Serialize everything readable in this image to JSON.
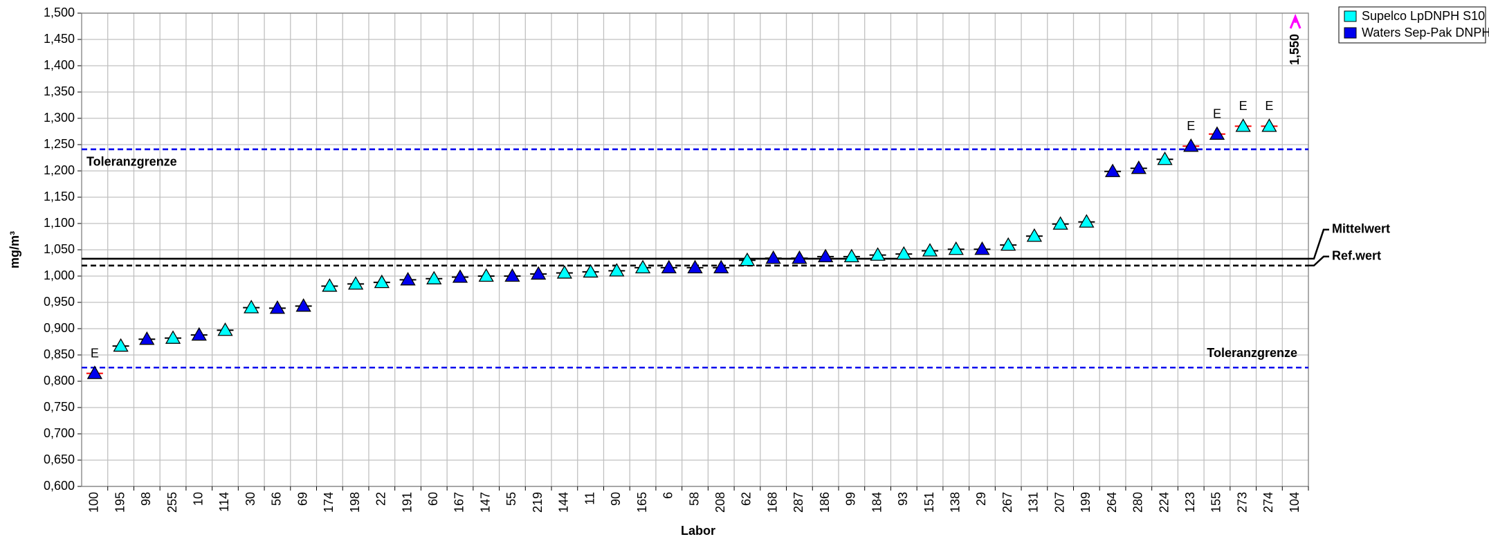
{
  "chart_data": {
    "type": "scatter",
    "x_label": "Labor",
    "y_label": "mg/m³",
    "categories": [
      "100",
      "195",
      "98",
      "255",
      "10",
      "114",
      "30",
      "56",
      "69",
      "174",
      "198",
      "22",
      "191",
      "60",
      "167",
      "147",
      "55",
      "219",
      "144",
      "11",
      "90",
      "165",
      "6",
      "58",
      "208",
      "62",
      "168",
      "287",
      "186",
      "99",
      "184",
      "93",
      "151",
      "138",
      "29",
      "267",
      "131",
      "207",
      "199",
      "264",
      "280",
      "224",
      "123",
      "155",
      "273",
      "274",
      "104"
    ],
    "series": [
      {
        "name": "Supelco LpDNPH S10",
        "color": "#00ffff",
        "values": [
          null,
          0.867,
          null,
          0.882,
          null,
          0.897,
          0.94,
          null,
          null,
          0.981,
          0.985,
          0.988,
          null,
          0.995,
          null,
          1.0,
          null,
          null,
          1.006,
          1.008,
          1.01,
          1.016,
          null,
          null,
          null,
          1.03,
          null,
          null,
          null,
          1.037,
          1.04,
          1.042,
          1.048,
          1.051,
          null,
          1.059,
          1.076,
          1.099,
          1.103,
          null,
          null,
          1.222,
          null,
          null,
          1.285,
          1.285,
          null
        ]
      },
      {
        "name": "Waters Sep-Pak DNPH",
        "color": "#0000ee",
        "values": [
          0.815,
          null,
          0.88,
          null,
          0.888,
          null,
          null,
          0.939,
          0.943,
          null,
          null,
          null,
          0.993,
          null,
          0.998,
          null,
          1.0,
          1.004,
          null,
          null,
          null,
          null,
          1.016,
          1.016,
          1.016,
          null,
          1.034,
          1.034,
          1.037,
          null,
          null,
          null,
          null,
          null,
          1.051,
          null,
          null,
          null,
          null,
          1.199,
          1.205,
          null,
          1.247,
          1.27,
          null,
          null,
          null
        ]
      }
    ],
    "annotations": [
      {
        "text": "E",
        "category": "100"
      },
      {
        "text": "E",
        "category": "123"
      },
      {
        "text": "E",
        "category": "155"
      },
      {
        "text": "E",
        "category": "273"
      },
      {
        "text": "E",
        "category": "274"
      }
    ],
    "outliers": [
      {
        "category": "104",
        "value": 1.55,
        "label": "1,550",
        "color": "#ff00ff"
      }
    ],
    "reference_lines": [
      {
        "label": "Mittelwert",
        "value": 1.033,
        "color": "#000000",
        "style": "solid"
      },
      {
        "label": "Ref.wert",
        "value": 1.02,
        "color": "#000000",
        "style": "dashed"
      },
      {
        "label": "Toleranzgrenze",
        "value": 1.241,
        "color": "#0000ee",
        "style": "dashed"
      },
      {
        "label": "Toleranzgrenze",
        "value": 0.826,
        "color": "#0000ee",
        "style": "dashed"
      }
    ],
    "ylim": [
      0.6,
      1.5
    ],
    "yticks": [
      {
        "value": 0.6,
        "label": "0,600"
      },
      {
        "value": 0.65,
        "label": "0,650"
      },
      {
        "value": 0.7,
        "label": "0,700"
      },
      {
        "value": 0.75,
        "label": "0,750"
      },
      {
        "value": 0.8,
        "label": "0,800"
      },
      {
        "value": 0.85,
        "label": "0,850"
      },
      {
        "value": 0.9,
        "label": "0,900"
      },
      {
        "value": 0.95,
        "label": "0,950"
      },
      {
        "value": 1.0,
        "label": "1,000"
      },
      {
        "value": 1.05,
        "label": "1,050"
      },
      {
        "value": 1.1,
        "label": "1,100"
      },
      {
        "value": 1.15,
        "label": "1,150"
      },
      {
        "value": 1.2,
        "label": "1,200"
      },
      {
        "value": 1.25,
        "label": "1,250"
      },
      {
        "value": 1.3,
        "label": "1,300"
      },
      {
        "value": 1.35,
        "label": "1,350"
      },
      {
        "value": 1.4,
        "label": "1,400"
      },
      {
        "value": 1.45,
        "label": "1,450"
      },
      {
        "value": 1.5,
        "label": "1,500"
      }
    ],
    "grid": true,
    "legend_position": "top-right"
  }
}
